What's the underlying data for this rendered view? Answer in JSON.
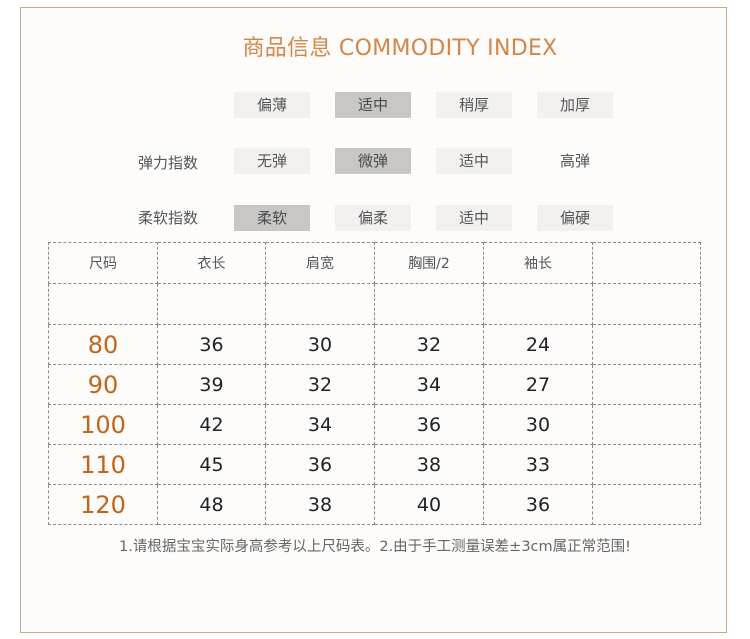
{
  "title": "商品信息 COMMODITY INDEX",
  "thickness": {
    "label": "",
    "options": [
      "偏薄",
      "适中",
      "稍厚",
      "加厚"
    ],
    "selected": "适中"
  },
  "elasticity": {
    "label": "弹力指数",
    "options": [
      "无弹",
      "微弹",
      "适中",
      "高弹"
    ],
    "selected": "微弹"
  },
  "softness": {
    "label": "柔软指数",
    "options": [
      "柔软",
      "偏柔",
      "适中",
      "偏硬"
    ],
    "selected": "柔软"
  },
  "size_table": {
    "headers": [
      "尺码",
      "衣长",
      "肩宽",
      "胸围/2",
      "袖长",
      ""
    ],
    "rows": [
      [
        "80",
        "36",
        "30",
        "32",
        "24",
        ""
      ],
      [
        "90",
        "39",
        "32",
        "34",
        "27",
        ""
      ],
      [
        "100",
        "42",
        "34",
        "36",
        "30",
        ""
      ],
      [
        "110",
        "45",
        "36",
        "38",
        "33",
        ""
      ],
      [
        "120",
        "48",
        "38",
        "40",
        "36",
        ""
      ]
    ]
  },
  "note": "1.请根据宝宝实际身高参考以上尺码表。2.由于手工测量误差±3cm属正常范围!",
  "colors": {
    "accent": "#d2864a",
    "size_text": "#c0651c",
    "selected_bg": "#c9c7c5",
    "option_bg": "#f3f1ef"
  }
}
